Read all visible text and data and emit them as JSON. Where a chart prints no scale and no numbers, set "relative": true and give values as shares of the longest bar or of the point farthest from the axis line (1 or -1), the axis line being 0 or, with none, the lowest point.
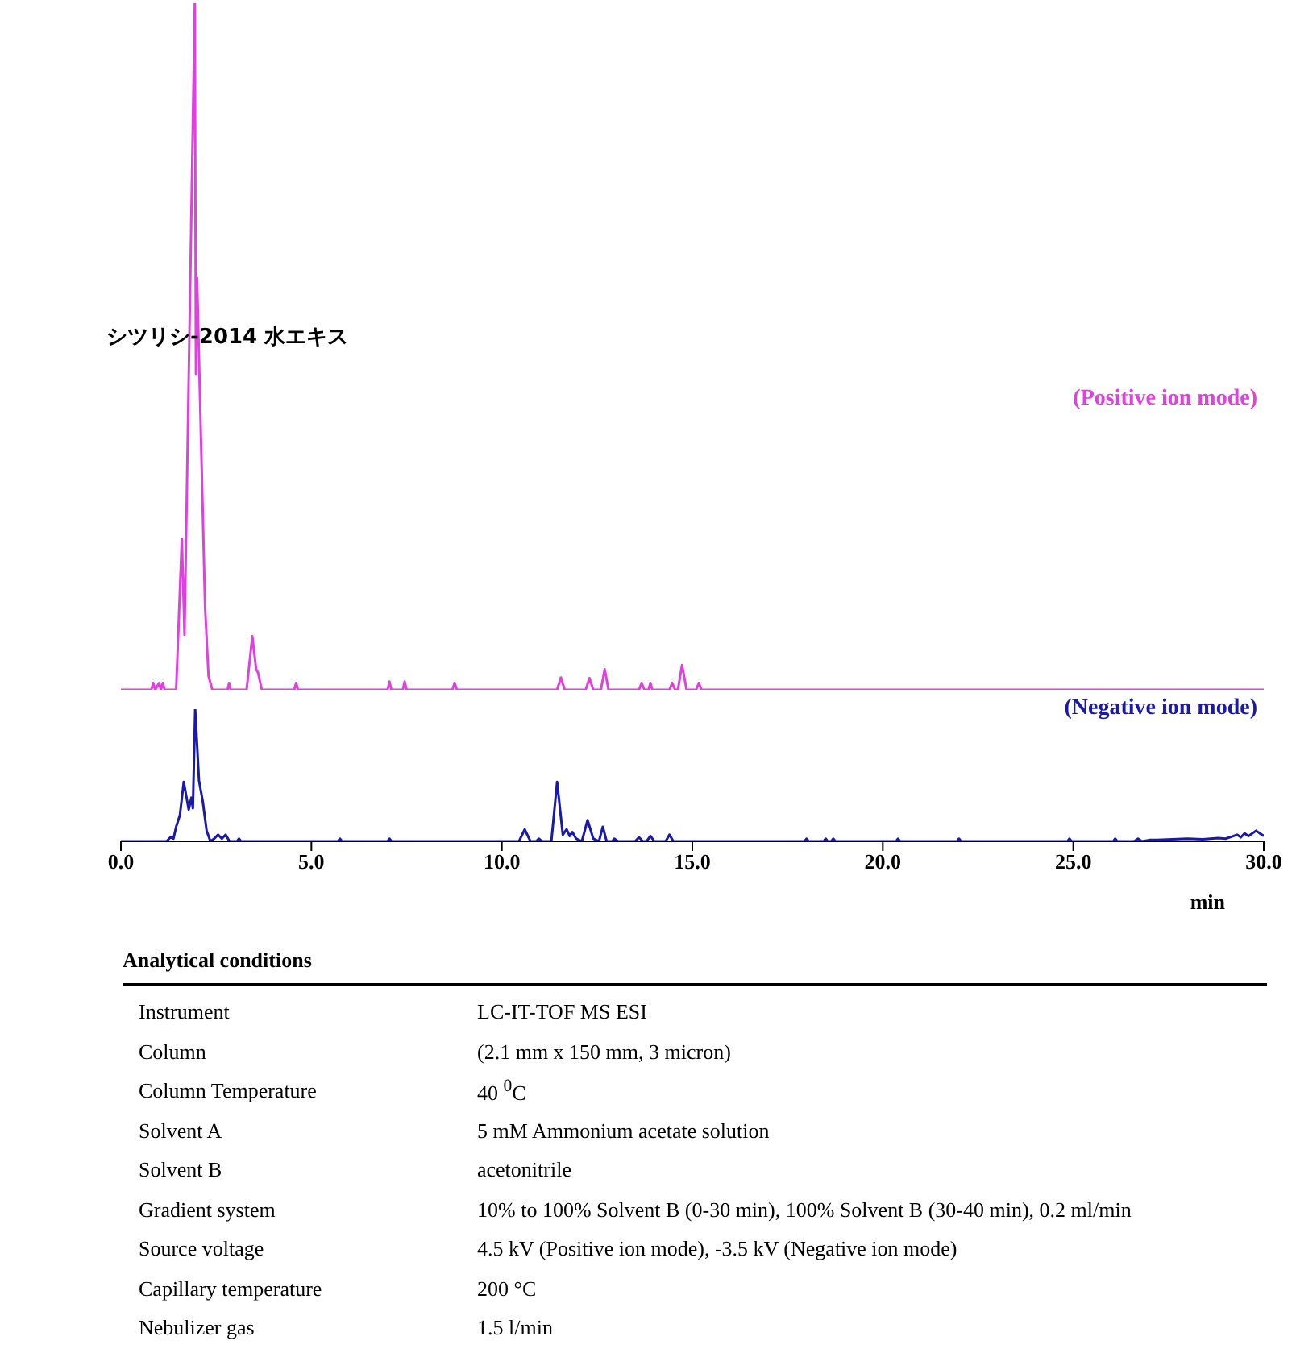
{
  "chart_data": [
    {
      "type": "line",
      "title": "シツリシ-2014 水エキス",
      "relative": true,
      "tick_labels": false,
      "xlim": [
        0,
        30
      ],
      "series": [
        {
          "name": "(Positive ion mode)",
          "color": "#e040e0",
          "x": [
            0,
            0.8,
            0.85,
            0.9,
            1.0,
            1.05,
            1.1,
            1.15,
            1.45,
            1.6,
            1.67,
            1.94,
            1.97,
            2.0,
            2.21,
            2.3,
            2.4,
            2.8,
            2.84,
            2.88,
            3.3,
            3.45,
            3.55,
            3.6,
            3.7,
            4.55,
            4.6,
            4.65,
            7.0,
            7.05,
            7.1,
            7.4,
            7.45,
            7.5,
            8.7,
            8.76,
            8.82,
            11.45,
            11.55,
            11.65,
            12.2,
            12.3,
            12.4,
            12.6,
            12.7,
            12.8,
            13.6,
            13.67,
            13.74,
            13.85,
            13.9,
            13.95,
            14.4,
            14.47,
            14.55,
            14.62,
            14.73,
            14.85,
            15.1,
            15.17,
            15.24,
            30
          ],
          "values": [
            0,
            0,
            0.01,
            0,
            0.01,
            0,
            0.01,
            0,
            0,
            0.22,
            0.08,
            1,
            0.46,
            0.6,
            0.12,
            0.02,
            0,
            0,
            0.01,
            0,
            0,
            0.078,
            0.03,
            0.025,
            0,
            0,
            0.01,
            0,
            0,
            0.012,
            0,
            0,
            0.012,
            0,
            0,
            0.01,
            0,
            0,
            0.018,
            0,
            0,
            0.017,
            0,
            0,
            0.03,
            0,
            0,
            0.01,
            0,
            0,
            0.01,
            0,
            0,
            0.01,
            0,
            0,
            0.036,
            0,
            0,
            0.01,
            0,
            0
          ]
        }
      ]
    },
    {
      "type": "line",
      "relative": true,
      "tick_labels": "x",
      "xlim": [
        0,
        30
      ],
      "xlabel": "min",
      "xticks": [
        {
          "value": 0,
          "label": "0.0"
        },
        {
          "value": 5,
          "label": "5.0"
        },
        {
          "value": 10,
          "label": "10.0"
        },
        {
          "value": 15,
          "label": "15.0"
        },
        {
          "value": 20,
          "label": "20.0"
        },
        {
          "value": 25,
          "label": "25.0"
        },
        {
          "value": 30,
          "label": "30.0"
        }
      ],
      "series": [
        {
          "name": "(Negative ion mode)",
          "color": "#1a1aaa",
          "x": [
            0,
            1.2,
            1.3,
            1.38,
            1.45,
            1.55,
            1.65,
            1.78,
            1.85,
            1.89,
            1.95,
            2.05,
            2.15,
            2.25,
            2.35,
            2.45,
            2.55,
            2.65,
            2.75,
            2.85,
            3.05,
            3.1,
            3.15,
            5.7,
            5.75,
            5.8,
            7.0,
            7.05,
            7.1,
            10.45,
            10.6,
            10.75,
            10.9,
            10.97,
            11.05,
            11.3,
            11.45,
            11.6,
            11.7,
            11.78,
            11.85,
            11.95,
            12.1,
            12.25,
            12.4,
            12.55,
            12.65,
            12.75,
            12.9,
            12.95,
            13.05,
            13.5,
            13.6,
            13.7,
            13.8,
            13.9,
            14.0,
            14.3,
            14.4,
            14.5,
            17.95,
            18.0,
            18.05,
            18.45,
            18.5,
            18.55,
            18.65,
            18.7,
            18.75,
            20.35,
            20.4,
            20.45,
            21.95,
            22.0,
            22.05,
            24.85,
            24.9,
            24.95,
            26.05,
            26.1,
            26.15,
            26.6,
            26.7,
            26.8,
            27.0,
            27.2,
            27.6,
            28.0,
            28.4,
            28.8,
            29.0,
            29.3,
            29.4,
            29.5,
            29.6,
            29.8,
            29.9,
            30
          ],
          "values": [
            0,
            0,
            0.03,
            0.02,
            0.11,
            0.2,
            0.45,
            0.24,
            0.33,
            0.25,
            1,
            0.46,
            0.3,
            0.08,
            0,
            0.02,
            0.05,
            0.02,
            0.05,
            0,
            0,
            0.02,
            0,
            0,
            0.02,
            0,
            0,
            0.02,
            0,
            0,
            0.09,
            0,
            0,
            0.02,
            0,
            0,
            0.45,
            0.05,
            0.09,
            0.04,
            0.07,
            0.02,
            0,
            0.16,
            0.02,
            0,
            0.11,
            0,
            0,
            0.02,
            0,
            0,
            0.03,
            0,
            0,
            0.04,
            0,
            0,
            0.05,
            0,
            0,
            0.02,
            0,
            0,
            0.02,
            0,
            0,
            0.02,
            0,
            0,
            0.02,
            0,
            0,
            0.02,
            0,
            0,
            0.02,
            0,
            0,
            0.02,
            0,
            0,
            0.02,
            0,
            0.01,
            0.01,
            0.015,
            0.02,
            0.015,
            0.025,
            0.02,
            0.05,
            0.03,
            0.06,
            0.04,
            0.08,
            0.06,
            0.04
          ]
        }
      ]
    },
    {
      "type": "other",
      "title": "Analytical conditions",
      "annotations": [
        "Instrument",
        "LC-IT-TOF MS ESI",
        "Column",
        "(2.1 mm x 150 mm, 3 micron)",
        "Column Temperature",
        "40 $^{0}$C",
        "Solvent A",
        "5 mM Ammonium acetate solution",
        "Solvent B",
        "acetonitrile",
        "Gradient system",
        "10% to 100% Solvent B (0-30 min), 100% Solvent B (30-40 min), 0.2 ml/min",
        "Source voltage",
        "4.5 kV (Positive ion mode), -3.5 kV (Negative ion mode)",
        "Capillary temperature",
        "200 °C",
        "Nebulizer gas",
        "1.5 l/min"
      ]
    }
  ]
}
